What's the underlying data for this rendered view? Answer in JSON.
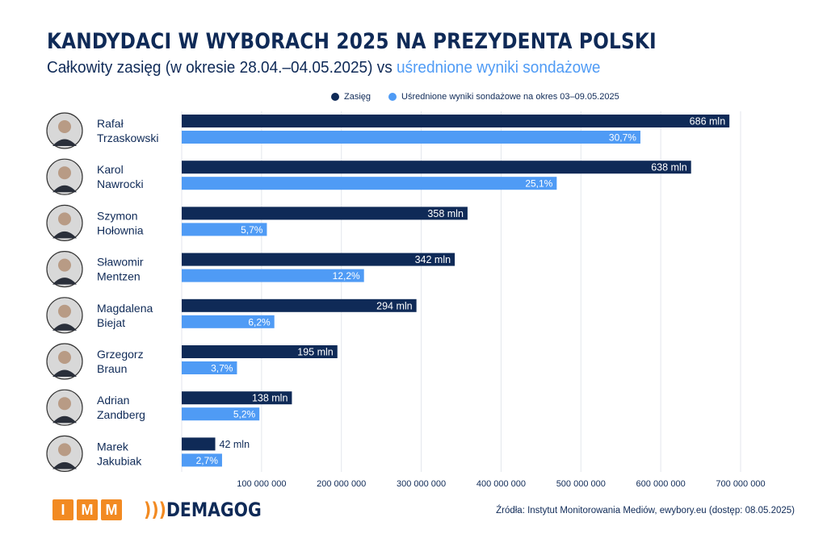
{
  "title": "KANDYDACI W WYBORACH 2025 NA PREZYDENTA POLSKI",
  "subtitle_main": "Całkowity zasięg (w okresie 28.04.–04.05.2025) vs ",
  "subtitle_highlight": "uśrednione wyniki sondażowe",
  "source": "Źródła: Instytut Monitorowania Mediów, ewybory.eu (dostęp: 08.05.2025)",
  "logos": {
    "imm": [
      "I",
      "M",
      "M"
    ],
    "demagog": "DEMAGOG"
  },
  "colors": {
    "reach": "#0f2a57",
    "poll": "#4f9bf5",
    "grid": "#e3e6ec"
  },
  "chart_data": {
    "type": "bar",
    "orientation": "horizontal",
    "title": "KANDYDACI W WYBORACH 2025 NA PREZYDENTA POLSKI",
    "categories": [
      "Rafał Trzaskowski",
      "Karol Nawrocki",
      "Szymon Hołownia",
      "Sławomir Mentzen",
      "Magdalena Biejat",
      "Grzegorz Braun",
      "Adrian Zandberg",
      "Marek Jakubiak"
    ],
    "name_lines": [
      [
        "Rafał",
        "Trzaskowski"
      ],
      [
        "Karol",
        "Nawrocki"
      ],
      [
        "Szymon",
        "Hołownia"
      ],
      [
        "Sławomir",
        "Mentzen"
      ],
      [
        "Magdalena",
        "Biejat"
      ],
      [
        "Grzegorz",
        "Braun"
      ],
      [
        "Adrian",
        "Zandberg"
      ],
      [
        "Marek",
        "Jakubiak"
      ]
    ],
    "series": [
      {
        "name": "Zasięg",
        "values": [
          686000000,
          638000000,
          358000000,
          342000000,
          294000000,
          195000000,
          138000000,
          42000000
        ],
        "labels": [
          "686 mln",
          "638 mln",
          "358 mln",
          "342 mln",
          "294 mln",
          "195 mln",
          "138 mln",
          "42 mln"
        ]
      },
      {
        "name": "Uśrednione wyniki sondażowe na okres 03–09.05.2025",
        "values": [
          30.7,
          25.1,
          5.7,
          12.2,
          6.2,
          3.7,
          5.2,
          2.7
        ],
        "labels": [
          "30,7%",
          "25,1%",
          "5,7%",
          "12,2%",
          "6,2%",
          "3,7%",
          "5,2%",
          "2,7%"
        ]
      }
    ],
    "xlim": [
      0,
      700000000
    ],
    "x_ticks": [
      100000000,
      200000000,
      300000000,
      400000000,
      500000000,
      600000000,
      700000000
    ],
    "x_tick_labels": [
      "100 000 000",
      "200 000 000",
      "300 000 000",
      "400 000 000",
      "500 000 000",
      "600 000 000",
      "700 000 000"
    ],
    "grid": true,
    "legend_position": "top"
  }
}
